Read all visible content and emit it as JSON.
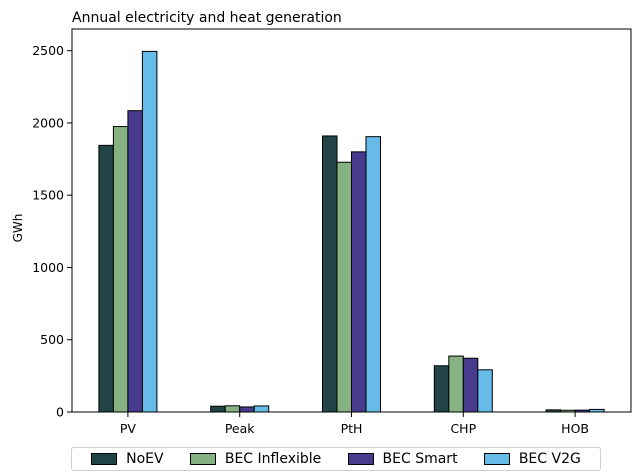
{
  "chart_data": {
    "type": "bar",
    "title": "Annual electricity and heat generation",
    "xlabel": "",
    "ylabel": "GWh",
    "categories": [
      "PV",
      "Peak",
      "PtH",
      "CHP",
      "HOB"
    ],
    "ylim": [
      0,
      2650
    ],
    "yticks": [
      0,
      500,
      1000,
      1500,
      2000,
      2500
    ],
    "grid": false,
    "legend_position": "bottom",
    "series": [
      {
        "name": "NoEV",
        "color": "#234446",
        "values": [
          1845,
          40,
          1910,
          320,
          15
        ]
      },
      {
        "name": "BEC Inflexible",
        "color": "#86b283",
        "values": [
          1975,
          43,
          1728,
          387,
          12
        ]
      },
      {
        "name": "BEC Smart",
        "color": "#463b8c",
        "values": [
          2085,
          35,
          1800,
          372,
          13
        ]
      },
      {
        "name": "BEC V2G",
        "color": "#67bbe8",
        "values": [
          2495,
          42,
          1905,
          292,
          18
        ]
      }
    ]
  }
}
